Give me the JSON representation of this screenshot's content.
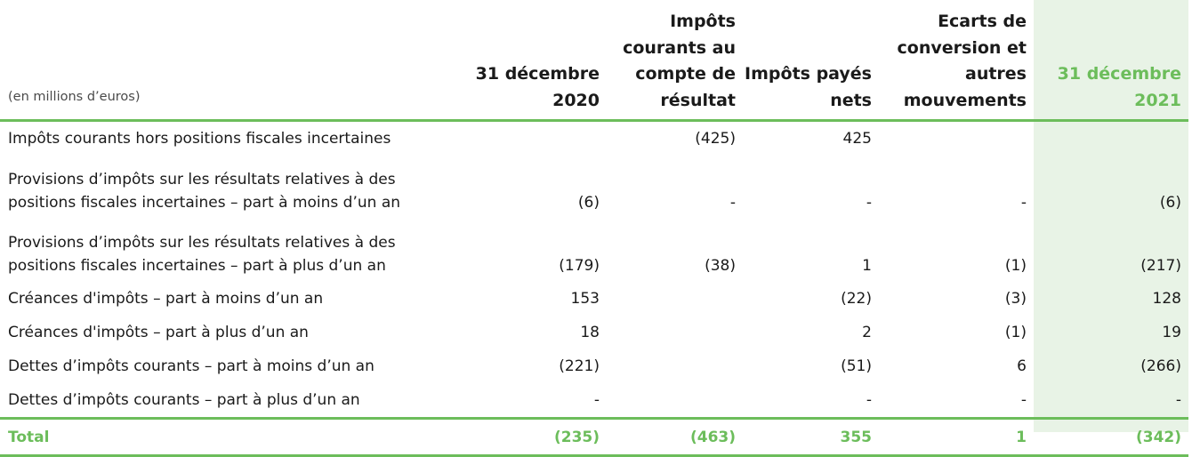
{
  "table": {
    "unit_label": "(en millions d’euros)",
    "headers": [
      "31 décembre 2020",
      "Impôts courants au compte de résultat",
      "Impôts payés nets",
      "Ecarts de conversion et autres mouvements",
      "31 décembre 2021"
    ],
    "rows": [
      {
        "label": "Impôts courants hors positions fiscales incertaines",
        "values": [
          "",
          "(425)",
          "425",
          "",
          ""
        ]
      },
      {
        "label": "Provisions d’impôts sur les résultats relatives à des positions fiscales incertaines – part à moins d’un an",
        "values": [
          "(6)",
          "-",
          "-",
          "-",
          "(6)"
        ]
      },
      {
        "label": "Provisions d’impôts sur les résultats relatives à des positions fiscales incertaines – part à plus d’un an",
        "values": [
          "(179)",
          "(38)",
          "1",
          "(1)",
          "(217)"
        ]
      },
      {
        "label": "Créances d'impôts – part à moins d’un an",
        "values": [
          "153",
          "",
          "(22)",
          "(3)",
          "128"
        ]
      },
      {
        "label": "Créances d'impôts – part à plus d’un an",
        "values": [
          "18",
          "",
          "2",
          "(1)",
          "19"
        ]
      },
      {
        "label": "Dettes d’impôts courants – part à moins d’un an",
        "values": [
          "(221)",
          "",
          "(51)",
          "6",
          "(266)"
        ]
      },
      {
        "label": "Dettes d’impôts courants – part à plus d’un an",
        "values": [
          "-",
          "",
          "-",
          "-",
          "-"
        ]
      }
    ],
    "total": {
      "label": "Total",
      "values": [
        "(235)",
        "(463)",
        "355",
        "1",
        "(342)"
      ]
    }
  },
  "colors": {
    "accent": "#6cbd5b",
    "highlight_bg": "#e8f3e6",
    "text": "#1a1a1a"
  }
}
